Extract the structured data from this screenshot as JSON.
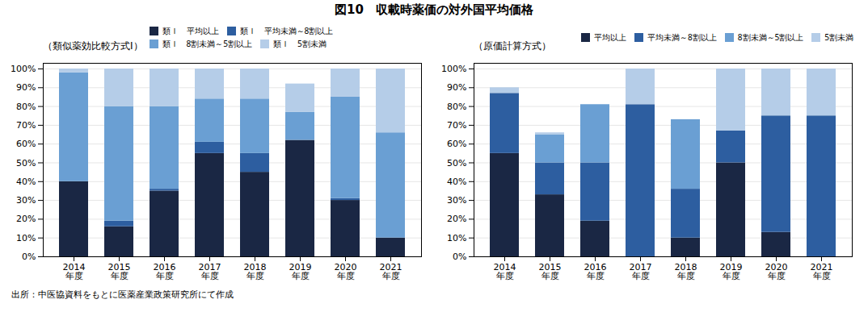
{
  "chart_data": [
    {
      "type": "bar",
      "title": "図10　収載時薬価の対外国平均価格",
      "subtitle": "（類似薬効比較方式Ⅰ）",
      "annotations": [
        "出所：中医協資料をもとに医薬産業政策研究所にて作成"
      ],
      "categories": [
        "2014\n年度",
        "2015\n年度",
        "2016\n年度",
        "2017\n年度",
        "2018\n年度",
        "2019\n年度",
        "2020\n年度",
        "2021\n年度"
      ],
      "series": [
        {
          "name": "類Ⅰ　平均以上",
          "color": "#1a2744",
          "values": [
            40,
            16,
            35,
            55,
            45,
            62,
            30,
            10
          ]
        },
        {
          "name": "類Ⅰ　平均未満～8割以上",
          "color": "#2d5ea0",
          "values": [
            0,
            3,
            1,
            6,
            10,
            0,
            1,
            0
          ]
        },
        {
          "name": "類Ⅰ　8割未満～5割以上",
          "color": "#6a9fd3",
          "values": [
            58,
            61,
            44,
            23,
            29,
            15,
            54,
            56
          ]
        },
        {
          "name": "類Ⅰ　5割未満",
          "color": "#b5cde8",
          "values": [
            2,
            20,
            20,
            16,
            16,
            15,
            15,
            34
          ]
        }
      ],
      "ylim": [
        0,
        103
      ],
      "yticks": [
        {
          "value": 0,
          "label": "0%"
        },
        {
          "value": 10,
          "label": "10%"
        },
        {
          "value": 20,
          "label": "20%"
        },
        {
          "value": 30,
          "label": "30%"
        },
        {
          "value": 40,
          "label": "40%"
        },
        {
          "value": 50,
          "label": "50%"
        },
        {
          "value": 60,
          "label": "60%"
        },
        {
          "value": 70,
          "label": "70%"
        },
        {
          "value": 80,
          "label": "80%"
        },
        {
          "value": 90,
          "label": "90%"
        },
        {
          "value": 100,
          "label": "100%"
        }
      ],
      "stacked": true,
      "grid": true,
      "legend": "upper-right"
    },
    {
      "type": "bar",
      "subtitle": "（原価計算方式）",
      "categories": [
        "2014\n年度",
        "2015\n年度",
        "2016\n年度",
        "2017\n年度",
        "2018\n年度",
        "2019\n年度",
        "2020\n年度",
        "2021\n年度"
      ],
      "series": [
        {
          "name": "平均以上",
          "color": "#1a2744",
          "values": [
            55,
            33,
            19,
            0,
            10,
            50,
            13,
            0
          ]
        },
        {
          "name": "平均未満～8割以上",
          "color": "#2d5ea0",
          "values": [
            32,
            17,
            31,
            81,
            26,
            17,
            62,
            75
          ]
        },
        {
          "name": "8割未満～5割以上",
          "color": "#6a9fd3",
          "values": [
            0,
            15,
            31,
            0,
            37,
            0,
            0,
            0
          ]
        },
        {
          "name": "5割未満",
          "color": "#b5cde8",
          "values": [
            3,
            1,
            0,
            19,
            0,
            33,
            25,
            25
          ]
        }
      ],
      "ylim": [
        0,
        103
      ],
      "yticks": [
        {
          "value": 0,
          "label": "0%"
        },
        {
          "value": 10,
          "label": "10%"
        },
        {
          "value": 20,
          "label": "20%"
        },
        {
          "value": 30,
          "label": "30%"
        },
        {
          "value": 40,
          "label": "40%"
        },
        {
          "value": 50,
          "label": "50%"
        },
        {
          "value": 60,
          "label": "60%"
        },
        {
          "value": 70,
          "label": "70%"
        },
        {
          "value": 80,
          "label": "80%"
        },
        {
          "value": 90,
          "label": "90%"
        },
        {
          "value": 100,
          "label": "100%"
        }
      ],
      "stacked": true,
      "grid": true,
      "legend": "upper-right"
    }
  ]
}
